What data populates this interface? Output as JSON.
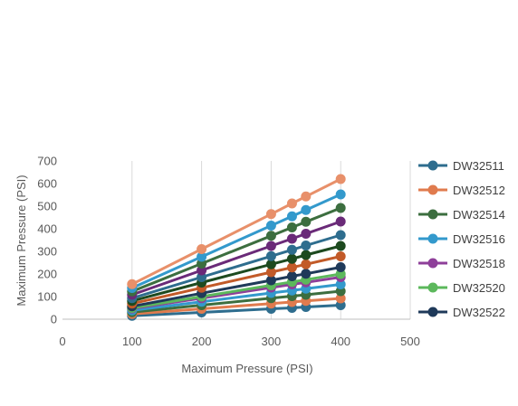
{
  "chart_data": {
    "type": "line",
    "title": "",
    "xlabel": "Maximum Pressure (PSI)",
    "ylabel": "Maximum Pressure (PSI)",
    "xlim": [
      0,
      500
    ],
    "ylim": [
      0,
      700
    ],
    "x_ticks": [
      0,
      100,
      200,
      300,
      400,
      500
    ],
    "y_ticks": [
      0,
      100,
      200,
      300,
      400,
      500,
      600,
      700
    ],
    "grid": "vertical",
    "legend_position": "right",
    "x": [
      100,
      200,
      300,
      330,
      350,
      400
    ],
    "series": [
      {
        "name": "DW32511",
        "color": "#2e6d8e",
        "visible_in_legend": true,
        "values": [
          15,
          30,
          46,
          50,
          54,
          62
        ]
      },
      {
        "name": "DW32512",
        "color": "#e07b4e",
        "visible_in_legend": true,
        "values": [
          23,
          46,
          69,
          76,
          81,
          92
        ]
      },
      {
        "name": "DW32514",
        "color": "#3c6e3f",
        "visible_in_legend": true,
        "values": [
          31,
          62,
          93,
          102,
          108,
          124
        ]
      },
      {
        "name": "DW32516",
        "color": "#3399cc",
        "visible_in_legend": true,
        "values": [
          39,
          77,
          116,
          127,
          135,
          154
        ]
      },
      {
        "name": "DW32518",
        "color": "#8e3f99",
        "visible_in_legend": true,
        "values": [
          47,
          93,
          140,
          154,
          163,
          186
        ]
      },
      {
        "name": "DW32520",
        "color": "#5cb85c",
        "visible_in_legend": true,
        "values": [
          50,
          100,
          150,
          165,
          175,
          200
        ]
      },
      {
        "name": "DW32522",
        "color": "#1f3a5a",
        "visible_in_legend": true,
        "values": [
          57,
          115,
          172,
          190,
          201,
          230
        ]
      },
      {
        "name": "",
        "color": "#c25a28",
        "visible_in_legend": false,
        "values": [
          69,
          139,
          208,
          229,
          243,
          278
        ]
      },
      {
        "name": "",
        "color": "#1d4a1f",
        "visible_in_legend": false,
        "values": [
          81,
          162,
          243,
          267,
          284,
          324
        ]
      },
      {
        "name": "",
        "color": "#2e6d8e",
        "visible_in_legend": false,
        "values": [
          93,
          186,
          279,
          307,
          326,
          372
        ]
      },
      {
        "name": "",
        "color": "#6a2a78",
        "visible_in_legend": false,
        "values": [
          108,
          216,
          324,
          356,
          378,
          432
        ]
      },
      {
        "name": "",
        "color": "#3c6e3f",
        "visible_in_legend": false,
        "values": [
          123,
          246,
          369,
          406,
          431,
          492
        ]
      },
      {
        "name": "",
        "color": "#3399cc",
        "visible_in_legend": false,
        "values": [
          138,
          276,
          414,
          455,
          483,
          552
        ]
      },
      {
        "name": "",
        "color": "#e8906a",
        "visible_in_legend": false,
        "values": [
          155,
          310,
          465,
          512,
          543,
          620
        ]
      }
    ]
  }
}
